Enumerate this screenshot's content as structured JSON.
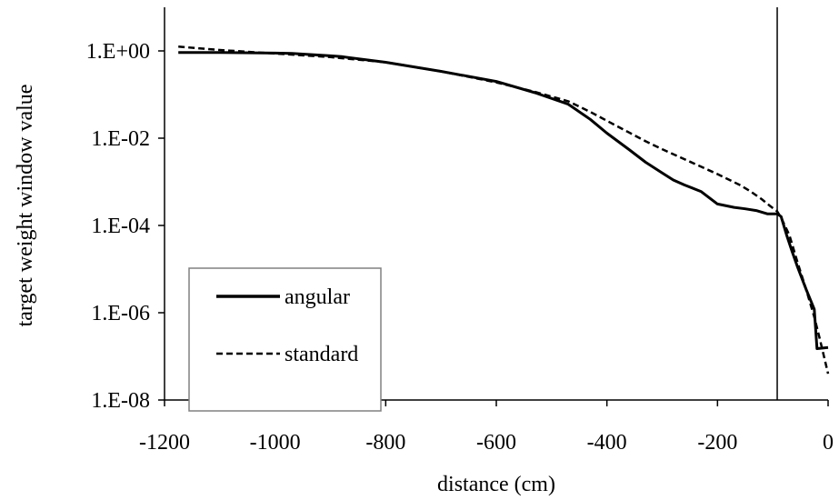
{
  "chart_data": {
    "type": "line",
    "xlabel": "distance (cm)",
    "ylabel": "target weight window value",
    "xlim": [
      -1200,
      0
    ],
    "ylim": [
      1e-08,
      10
    ],
    "yscale": "log",
    "x_ticks": [
      -1200,
      -1000,
      -800,
      -600,
      -400,
      -200,
      0
    ],
    "y_ticks": [
      1,
      0.01,
      0.0001,
      1e-06,
      1e-08
    ],
    "x_tick_labels": [
      "-1200",
      "-1000",
      "-800",
      "-600",
      "-400",
      "-200",
      "0"
    ],
    "y_tick_labels": [
      "1.E+00",
      "1.E-02",
      "1.E-04",
      "1.E-06",
      "1.E-08"
    ],
    "vertical_line_x": -92,
    "grid": false,
    "legend_position": "bottom-left",
    "series": [
      {
        "name": "angular",
        "style": "solid",
        "points": [
          [
            -1175,
            0.92
          ],
          [
            -1100,
            0.92
          ],
          [
            -1000,
            0.89
          ],
          [
            -970,
            0.88
          ],
          [
            -900,
            0.77
          ],
          [
            -880,
            0.74
          ],
          [
            -800,
            0.55
          ],
          [
            -700,
            0.34
          ],
          [
            -600,
            0.2
          ],
          [
            -530,
            0.11
          ],
          [
            -470,
            0.06
          ],
          [
            -430,
            0.027
          ],
          [
            -400,
            0.013
          ],
          [
            -360,
            0.0055
          ],
          [
            -330,
            0.0028
          ],
          [
            -300,
            0.0016
          ],
          [
            -280,
            0.0011
          ],
          [
            -260,
            0.00085
          ],
          [
            -230,
            0.0006
          ],
          [
            -200,
            0.00031
          ],
          [
            -170,
            0.00026
          ],
          [
            -150,
            0.00024
          ],
          [
            -130,
            0.00022
          ],
          [
            -110,
            0.000185
          ],
          [
            -92,
            0.000185
          ],
          [
            -85,
            0.00016
          ],
          [
            -75,
            6e-05
          ],
          [
            -65,
            2.5e-05
          ],
          [
            -55,
            1.1e-05
          ],
          [
            -40,
            3.5e-06
          ],
          [
            -25,
            1.2e-06
          ],
          [
            -20,
            1.5e-07
          ],
          [
            0,
            1.6e-07
          ]
        ]
      },
      {
        "name": "standard",
        "style": "dashed",
        "points": [
          [
            -1175,
            1.25
          ],
          [
            -1100,
            1.05
          ],
          [
            -1000,
            0.87
          ],
          [
            -900,
            0.72
          ],
          [
            -800,
            0.55
          ],
          [
            -700,
            0.34
          ],
          [
            -600,
            0.19
          ],
          [
            -530,
            0.115
          ],
          [
            -470,
            0.07
          ],
          [
            -430,
            0.04
          ],
          [
            -400,
            0.025
          ],
          [
            -360,
            0.0135
          ],
          [
            -330,
            0.0085
          ],
          [
            -300,
            0.0056
          ],
          [
            -250,
            0.0029
          ],
          [
            -200,
            0.0015
          ],
          [
            -160,
            0.00085
          ],
          [
            -140,
            0.0006
          ],
          [
            -120,
            0.0004
          ],
          [
            -105,
            0.00028
          ],
          [
            -92,
            0.00021
          ],
          [
            -85,
            0.00015
          ],
          [
            -70,
            6e-05
          ],
          [
            -55,
            1.4e-05
          ],
          [
            -40,
            3.5e-06
          ],
          [
            -25,
            8e-07
          ],
          [
            -15,
            2.5e-07
          ],
          [
            0,
            4e-08
          ]
        ]
      }
    ]
  }
}
